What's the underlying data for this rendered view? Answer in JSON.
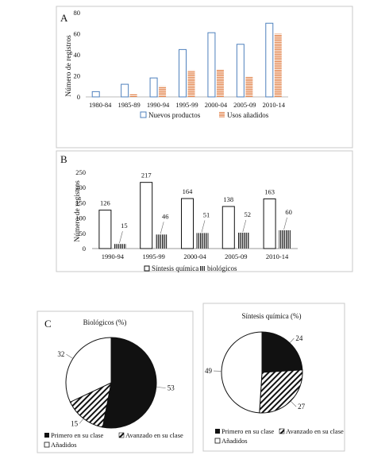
{
  "chart_data": [
    {
      "panel": "A",
      "type": "bar",
      "ylabel": "Número de registros",
      "ylim": [
        0,
        80
      ],
      "yticks": [
        0,
        20,
        40,
        60,
        80
      ],
      "categories": [
        "1980-84",
        "1985-89",
        "1990-94",
        "1995-99",
        "2000-04",
        "2005-09",
        "2010-14"
      ],
      "series": [
        {
          "name": "Nuevos productos",
          "values": [
            5,
            12,
            18,
            45,
            61,
            50,
            70
          ],
          "style": "hollow",
          "color": "#4f81bd"
        },
        {
          "name": "Usos añadidos",
          "values": [
            0,
            3,
            10,
            25,
            26,
            19,
            60
          ],
          "style": "striped",
          "color": "#e07a3e"
        }
      ],
      "legend": "bottom"
    },
    {
      "panel": "B",
      "type": "bar",
      "ylabel": "Número de registros",
      "ylim": [
        0,
        250
      ],
      "yticks": [
        0,
        50,
        100,
        150,
        200,
        250
      ],
      "categories": [
        "1990-94",
        "1995-99",
        "2000-04",
        "2005-09",
        "2010-14"
      ],
      "series": [
        {
          "name": "Síntesis química",
          "values": [
            126,
            217,
            164,
            138,
            163
          ],
          "style": "hollow"
        },
        {
          "name": "biológicos",
          "values": [
            15,
            46,
            51,
            52,
            60
          ],
          "style": "vertical-stripes"
        }
      ],
      "legend": "bottom"
    },
    {
      "panel": "C",
      "type": "pie",
      "title": "Biológicos (%)",
      "labels": [
        "Primero en su clase",
        "Avanzado en su clase",
        "Añadidos"
      ],
      "values": [
        53,
        15,
        32
      ],
      "styles": [
        "solid",
        "hatch",
        "white"
      ],
      "legend": "bottom"
    },
    {
      "type": "pie",
      "title": "Síntesis química (%)",
      "labels": [
        "Primero en su clase",
        "Avanzado en su clase",
        "Añadidos"
      ],
      "values": [
        24,
        27,
        49
      ],
      "styles": [
        "solid",
        "hatch",
        "white"
      ],
      "legend": "bottom"
    }
  ]
}
